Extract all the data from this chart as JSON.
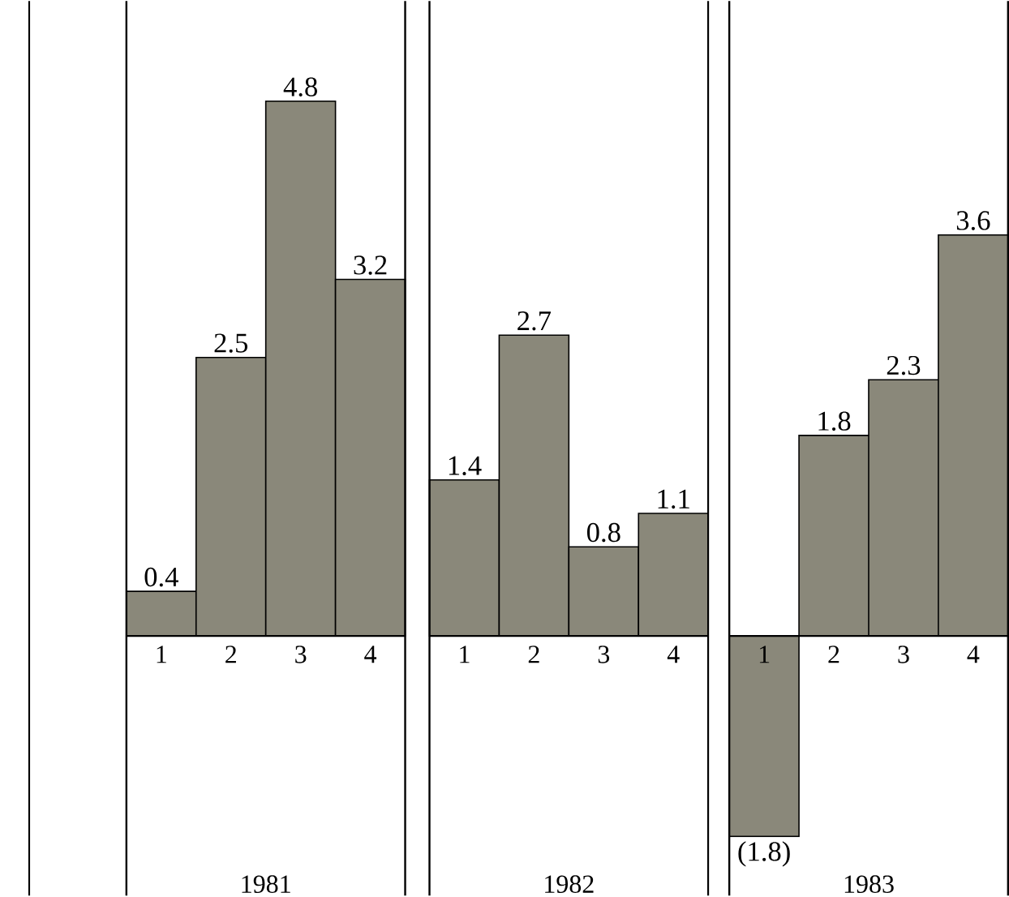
{
  "chart_data": [
    {
      "type": "bar",
      "categories": [
        "1",
        "2",
        "3",
        "4"
      ],
      "xlabel": "1981",
      "values": [
        0.4,
        2.5,
        4.8,
        3.2
      ],
      "value_labels": [
        "0.4",
        "2.5",
        "4.8",
        "3.2"
      ],
      "color": "#8a887a"
    },
    {
      "type": "bar",
      "categories": [
        "1",
        "2",
        "3",
        "4"
      ],
      "xlabel": "1982",
      "values": [
        1.4,
        2.7,
        0.8,
        1.1
      ],
      "value_labels": [
        "1.4",
        "2.7",
        "0.8",
        "1.1"
      ],
      "color": "#8a887a"
    },
    {
      "type": "bar",
      "categories": [
        "1",
        "2",
        "3",
        "4"
      ],
      "xlabel": "1983",
      "values": [
        -1.8,
        1.8,
        2.3,
        3.6
      ],
      "value_labels": [
        "(1.8)",
        "1.8",
        "2.3",
        "3.6"
      ],
      "color": "#8a887a"
    }
  ]
}
